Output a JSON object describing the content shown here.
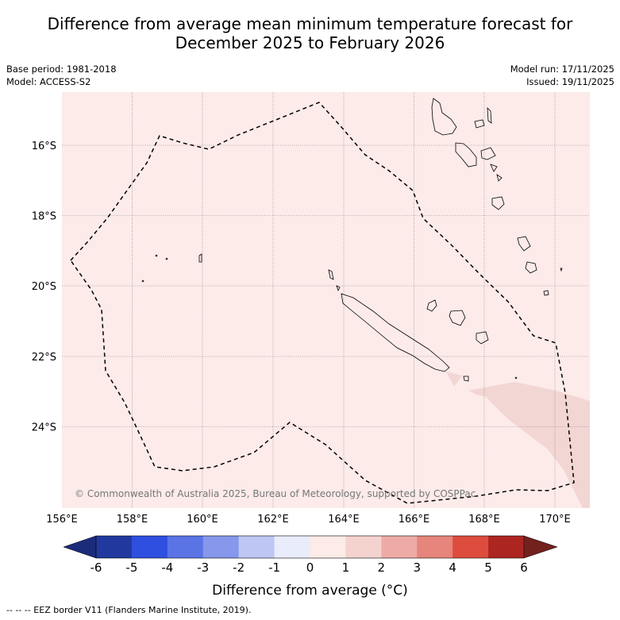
{
  "title_line1": "Difference from average mean minimum temperature forecast for",
  "title_line2": "December 2025 to February 2026",
  "meta": {
    "base_period": "Base period: 1981-2018",
    "model": "Model: ACCESS-S2",
    "model_run": "Model run: 17/11/2025",
    "issued": "Issued: 19/11/2025"
  },
  "axes": {
    "lon_labels": [
      "156°E",
      "158°E",
      "160°E",
      "162°E",
      "164°E",
      "166°E",
      "168°E",
      "170°E"
    ],
    "lat_labels": [
      "16°S",
      "18°S",
      "20°S",
      "22°S",
      "24°S"
    ]
  },
  "copyright": "© Commonwealth of Australia 2025, Bureau of Meteorology, supported by COSPPac",
  "colorbar": {
    "ticks": [
      "-6",
      "-5",
      "-4",
      "-3",
      "-2",
      "-1",
      "0",
      "1",
      "2",
      "3",
      "4",
      "5",
      "6"
    ],
    "colors": [
      "#21399f",
      "#2f4fe0",
      "#5a74e6",
      "#8797eb",
      "#bec6f3",
      "#e9ecfb",
      "#fcebe7",
      "#f4d3cf",
      "#eeaba5",
      "#e6857b",
      "#dd4c3d",
      "#ad2521"
    ],
    "low_extend_color": "#1c2c7a",
    "high_extend_color": "#73211d",
    "label": "Difference from average (°C)"
  },
  "map_colors": {
    "base_fill": "#fcebe9",
    "warmer_fill": "#f2d6d4"
  },
  "legend_eez": "-- -- -- EEZ border V11 (Flanders Marine Institute, 2019)."
}
